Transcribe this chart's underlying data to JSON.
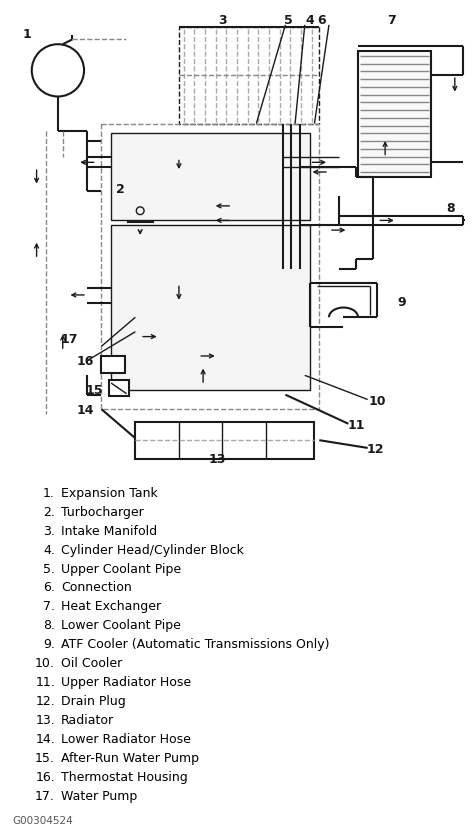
{
  "diagram_caption": "G00304524",
  "legend_items": [
    [
      "1.",
      "Expansion Tank"
    ],
    [
      "2.",
      "Turbocharger"
    ],
    [
      "3.",
      "Intake Manifold"
    ],
    [
      "4.",
      "Cylinder Head/Cylinder Block"
    ],
    [
      "5.",
      "Upper Coolant Pipe"
    ],
    [
      "6.",
      "Connection"
    ],
    [
      "7.",
      "Heat Exchanger"
    ],
    [
      "8.",
      "Lower Coolant Pipe"
    ],
    [
      "9.",
      "ATF Cooler (Automatic Transmissions Only)"
    ],
    [
      "10.",
      "Oil Cooler"
    ],
    [
      "11.",
      "Upper Radiator Hose"
    ],
    [
      "12.",
      "Drain Plug"
    ],
    [
      "13.",
      "Radiator"
    ],
    [
      "14.",
      "Lower Radiator Hose"
    ],
    [
      "15.",
      "After-Run Water Pump"
    ],
    [
      "16.",
      "Thermostat Housing"
    ],
    [
      "17.",
      "Water Pump"
    ]
  ],
  "bg_color": "#ffffff",
  "text_color": "#000000",
  "lc": "#1a1a1a",
  "label_fontsize": 9.0,
  "caption_fontsize": 7.5,
  "fig_width": 4.74,
  "fig_height": 8.34,
  "dpi": 100
}
